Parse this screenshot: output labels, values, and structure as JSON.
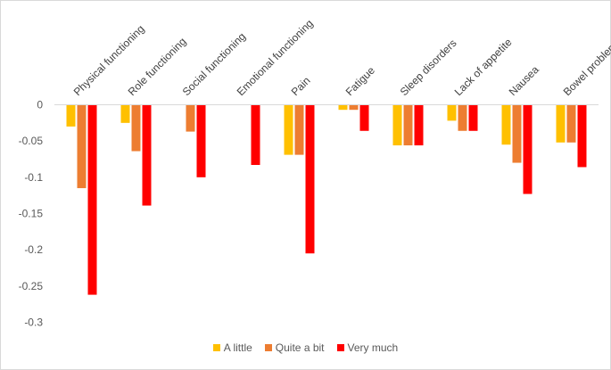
{
  "chart_data": {
    "type": "bar",
    "title": "",
    "xlabel": "",
    "ylabel": "",
    "categories": [
      "Physical functioning",
      "Role functioning",
      "Social functioning",
      "Emotional functioning",
      "Pain",
      "Fatigue",
      "Sleep disorders",
      "Lack of appetite",
      "Nausea",
      "Bowel problems"
    ],
    "series": [
      {
        "name": "A little",
        "color": "#FFC000",
        "values": [
          -0.03,
          -0.025,
          null,
          null,
          -0.069,
          -0.007,
          -0.056,
          -0.022,
          -0.055,
          -0.052
        ]
      },
      {
        "name": "Quite a bit",
        "color": "#ED7D31",
        "values": [
          -0.115,
          -0.064,
          -0.037,
          null,
          -0.069,
          -0.007,
          -0.056,
          -0.036,
          -0.08,
          -0.052
        ]
      },
      {
        "name": "Very much",
        "color": "#FF0000",
        "values": [
          -0.262,
          -0.139,
          -0.1,
          -0.083,
          -0.205,
          -0.036,
          -0.056,
          -0.036,
          -0.123,
          -0.086
        ]
      }
    ],
    "yticks": [
      "0",
      "-0.05",
      "-0.1",
      "-0.15",
      "-0.2",
      "-0.25",
      "-0.3"
    ],
    "ylim": [
      -0.3,
      0
    ],
    "legend_position": "bottom",
    "grid": false
  }
}
